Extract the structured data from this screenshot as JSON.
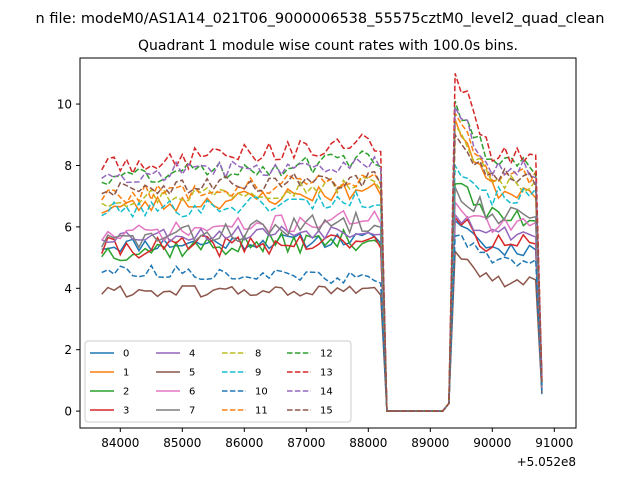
{
  "suptitle": "n file: modeM0/AS1A14_021T06_9000006538_55575cztM0_level2_quad_clean",
  "chart_data": {
    "type": "line",
    "title": "Quadrant 1 module wise count rates with 100.0s bins.",
    "xlabel": "",
    "ylabel": "",
    "x_offset_label": "+5.052e8",
    "xlim": [
      83350,
      91350
    ],
    "ylim": [
      -0.55,
      11.5
    ],
    "x_ticks": [
      84000,
      85000,
      86000,
      87000,
      88000,
      89000,
      90000,
      91000
    ],
    "x_tick_labels": [
      "84000",
      "85000",
      "86000",
      "87000",
      "88000",
      "89000",
      "90000",
      "91000"
    ],
    "y_ticks": [
      0,
      2,
      4,
      6,
      8,
      10
    ],
    "y_tick_labels": [
      "0",
      "2",
      "4",
      "6",
      "8",
      "10"
    ],
    "grid": false,
    "legend_placement": "lower-left",
    "legend_columns": 4,
    "x_segments": [
      {
        "start": 83700,
        "step": 100,
        "count": 45
      },
      {
        "start": 88200,
        "step": 100,
        "count": 4
      },
      {
        "start": 88300,
        "step": 100,
        "count": 10
      },
      {
        "start": 89300,
        "step": 100,
        "count": 16
      }
    ],
    "series": [
      {
        "name": "0",
        "color": "#1f77b4",
        "dash": "solid",
        "base": 5.4,
        "drift": 0.2,
        "noise": 0.25,
        "peak": 6.2,
        "tail": 5.3,
        "end": 0.55,
        "seed": 11
      },
      {
        "name": "1",
        "color": "#ff7f0e",
        "dash": "solid",
        "base": 6.6,
        "drift": 0.6,
        "noise": 0.3,
        "peak": 9.5,
        "tail": 7.2,
        "end": 0.95,
        "seed": 23
      },
      {
        "name": "2",
        "color": "#2ca02c",
        "dash": "solid",
        "base": 5.2,
        "drift": 0.4,
        "noise": 0.35,
        "peak": 7.4,
        "tail": 6.3,
        "end": 0.9,
        "seed": 37
      },
      {
        "name": "3",
        "color": "#d62728",
        "dash": "solid",
        "base": 5.3,
        "drift": 0.2,
        "noise": 0.35,
        "peak": 6.3,
        "tail": 5.4,
        "end": 0.7,
        "seed": 41
      },
      {
        "name": "4",
        "color": "#9467bd",
        "dash": "solid",
        "base": 5.7,
        "drift": 0.2,
        "noise": 0.25,
        "peak": 6.4,
        "tail": 5.8,
        "end": 0.8,
        "seed": 53
      },
      {
        "name": "5",
        "color": "#8c564b",
        "dash": "solid",
        "base": 3.9,
        "drift": 0.0,
        "noise": 0.2,
        "peak": 5.2,
        "tail": 4.2,
        "end": 0.6,
        "seed": 61
      },
      {
        "name": "6",
        "color": "#e377c2",
        "dash": "solid",
        "base": 5.7,
        "drift": 0.6,
        "noise": 0.3,
        "peak": 6.8,
        "tail": 6.0,
        "end": 0.75,
        "seed": 71
      },
      {
        "name": "7",
        "color": "#7f7f7f",
        "dash": "solid",
        "base": 5.5,
        "drift": 0.7,
        "noise": 0.35,
        "peak": 7.3,
        "tail": 6.4,
        "end": 0.8,
        "seed": 83
      },
      {
        "name": "8",
        "color": "#bcbd22",
        "dash": "dashed",
        "base": 6.9,
        "drift": 0.5,
        "noise": 0.3,
        "peak": 9.3,
        "tail": 7.4,
        "end": 0.9,
        "seed": 97
      },
      {
        "name": "9",
        "color": "#17becf",
        "dash": "dashed",
        "base": 6.5,
        "drift": 0.4,
        "noise": 0.3,
        "peak": 8.0,
        "tail": 7.0,
        "end": 0.85,
        "seed": 101
      },
      {
        "name": "10",
        "color": "#1f77b4",
        "dash": "dashed",
        "base": 4.6,
        "drift": -0.3,
        "noise": 0.2,
        "peak": 5.7,
        "tail": 4.9,
        "end": 0.65,
        "seed": 113
      },
      {
        "name": "11",
        "color": "#ff7f0e",
        "dash": "dashed",
        "base": 7.0,
        "drift": 0.6,
        "noise": 0.3,
        "peak": 9.7,
        "tail": 7.6,
        "end": 0.95,
        "seed": 127
      },
      {
        "name": "12",
        "color": "#2ca02c",
        "dash": "dashed",
        "base": 7.6,
        "drift": 0.6,
        "noise": 0.35,
        "peak": 10.1,
        "tail": 8.0,
        "end": 1.05,
        "seed": 131
      },
      {
        "name": "13",
        "color": "#d62728",
        "dash": "dashed",
        "base": 8.0,
        "drift": 0.7,
        "noise": 0.35,
        "peak": 11.0,
        "tail": 8.3,
        "end": 1.1,
        "seed": 149
      },
      {
        "name": "14",
        "color": "#9467bd",
        "dash": "dashed",
        "base": 7.7,
        "drift": 0.4,
        "noise": 0.3,
        "peak": 9.9,
        "tail": 7.9,
        "end": 1.0,
        "seed": 157
      },
      {
        "name": "15",
        "color": "#8c564b",
        "dash": "dashed",
        "base": 7.2,
        "drift": 0.4,
        "noise": 0.3,
        "peak": 9.0,
        "tail": 7.6,
        "end": 0.95,
        "seed": 167
      }
    ]
  }
}
